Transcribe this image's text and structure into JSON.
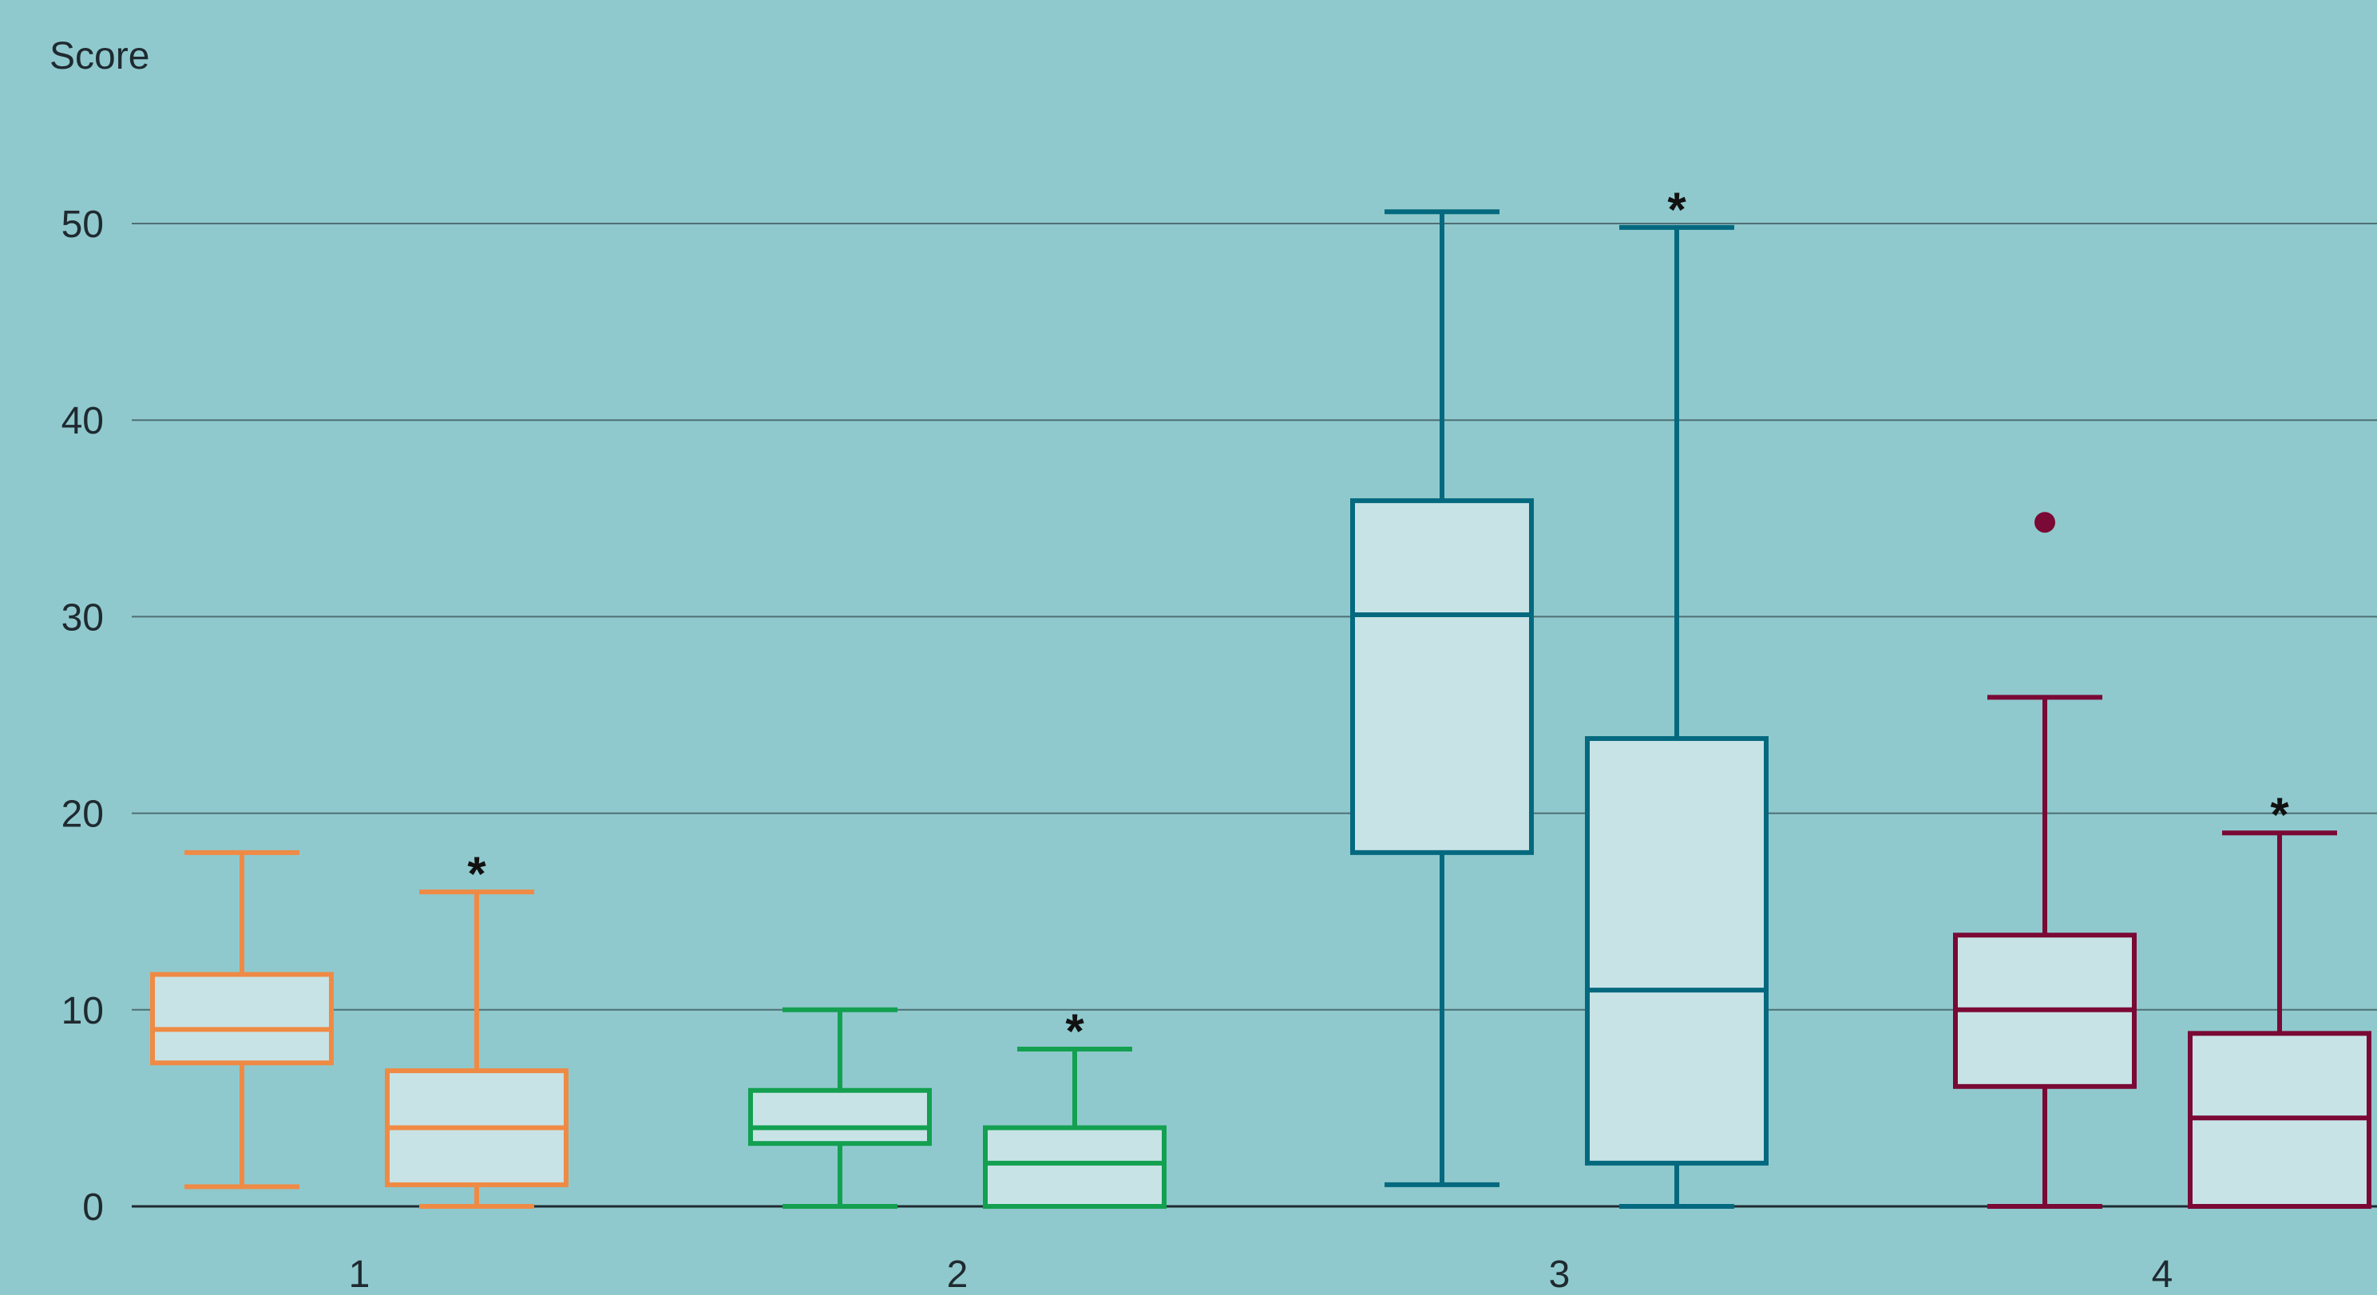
{
  "chart_data": {
    "type": "boxplot",
    "ylabel": "Score",
    "xlabel": "",
    "title": "",
    "ylim": [
      0,
      50
    ],
    "yticks": [
      0,
      10,
      20,
      30,
      40,
      50
    ],
    "grid": true,
    "categories": [
      "1",
      "2",
      "3",
      "4"
    ],
    "significance_marker": "*",
    "groups": [
      {
        "category": "1",
        "color": "#ef8a45",
        "boxes": [
          {
            "whisker_low": 1,
            "q1": 7.3,
            "median": 9,
            "q3": 11.8,
            "whisker_high": 18,
            "outliers": [],
            "marker": ""
          },
          {
            "whisker_low": 0,
            "q1": 1.1,
            "median": 4,
            "q3": 6.9,
            "whisker_high": 16,
            "outliers": [],
            "marker": "*"
          }
        ]
      },
      {
        "category": "2",
        "color": "#13a050",
        "boxes": [
          {
            "whisker_low": 0,
            "q1": 3.2,
            "median": 4,
            "q3": 5.9,
            "whisker_high": 10,
            "outliers": [],
            "marker": ""
          },
          {
            "whisker_low": 0,
            "q1": 0,
            "median": 2.2,
            "q3": 4,
            "whisker_high": 8,
            "outliers": [],
            "marker": "*"
          }
        ]
      },
      {
        "category": "3",
        "color": "#04697f",
        "boxes": [
          {
            "whisker_low": 1.1,
            "q1": 18,
            "median": 30.1,
            "q3": 35.9,
            "whisker_high": 50.6,
            "outliers": [],
            "marker": ""
          },
          {
            "whisker_low": 0,
            "q1": 2.2,
            "median": 11,
            "q3": 23.8,
            "whisker_high": 49.8,
            "outliers": [],
            "marker": "*"
          }
        ]
      },
      {
        "category": "4",
        "color": "#7a0935",
        "boxes": [
          {
            "whisker_low": 0,
            "q1": 6.1,
            "median": 10,
            "q3": 13.8,
            "whisker_high": 25.9,
            "outliers": [
              34.8
            ],
            "marker": ""
          },
          {
            "whisker_low": 0,
            "q1": 0,
            "median": 4.5,
            "q3": 8.8,
            "whisker_high": 19,
            "outliers": [],
            "marker": "*"
          }
        ]
      }
    ]
  }
}
